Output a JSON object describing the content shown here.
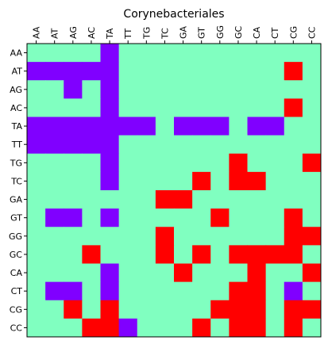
{
  "chart_data": {
    "type": "heatmap",
    "title": "Corynebacteriales",
    "xlabel": "",
    "ylabel": "",
    "x_categories": [
      "AA",
      "AT",
      "AG",
      "AC",
      "TA",
      "TT",
      "TG",
      "TC",
      "GA",
      "GT",
      "GG",
      "GC",
      "CA",
      "CT",
      "CG",
      "CC"
    ],
    "y_categories": [
      "AA",
      "AT",
      "AG",
      "AC",
      "TA",
      "TT",
      "TG",
      "TC",
      "GA",
      "GT",
      "GG",
      "GC",
      "CA",
      "CT",
      "CG",
      "CC"
    ],
    "x_ticks_position": "top",
    "colormap": {
      "0": "#8000ff",
      "1": "#80ffc0",
      "2": "#ff0000"
    },
    "grid": false,
    "legend": "none",
    "values": [
      [
        1,
        1,
        1,
        1,
        0,
        1,
        1,
        1,
        1,
        1,
        1,
        1,
        1,
        1,
        1,
        1
      ],
      [
        0,
        0,
        0,
        0,
        0,
        1,
        1,
        1,
        1,
        1,
        1,
        1,
        1,
        1,
        2,
        1
      ],
      [
        1,
        1,
        0,
        1,
        0,
        1,
        1,
        1,
        1,
        1,
        1,
        1,
        1,
        1,
        1,
        1
      ],
      [
        1,
        1,
        1,
        1,
        0,
        1,
        1,
        1,
        1,
        1,
        1,
        1,
        1,
        1,
        2,
        1
      ],
      [
        0,
        0,
        0,
        0,
        0,
        0,
        0,
        1,
        0,
        0,
        0,
        1,
        0,
        0,
        1,
        1
      ],
      [
        0,
        0,
        0,
        0,
        0,
        1,
        1,
        1,
        1,
        1,
        1,
        1,
        1,
        1,
        1,
        1
      ],
      [
        1,
        1,
        1,
        1,
        0,
        1,
        1,
        1,
        1,
        1,
        1,
        2,
        1,
        1,
        1,
        2
      ],
      [
        1,
        1,
        1,
        1,
        0,
        1,
        1,
        1,
        1,
        2,
        1,
        2,
        2,
        1,
        1,
        1
      ],
      [
        1,
        1,
        1,
        1,
        1,
        1,
        1,
        2,
        2,
        1,
        1,
        1,
        1,
        1,
        1,
        1
      ],
      [
        1,
        0,
        0,
        1,
        0,
        1,
        1,
        1,
        1,
        1,
        2,
        1,
        1,
        1,
        2,
        1
      ],
      [
        1,
        1,
        1,
        1,
        1,
        1,
        1,
        2,
        1,
        1,
        1,
        1,
        1,
        1,
        2,
        2
      ],
      [
        1,
        1,
        1,
        2,
        1,
        1,
        1,
        2,
        1,
        2,
        1,
        2,
        2,
        2,
        2,
        1
      ],
      [
        1,
        1,
        1,
        1,
        0,
        1,
        1,
        1,
        2,
        1,
        1,
        1,
        2,
        1,
        1,
        2
      ],
      [
        1,
        0,
        0,
        1,
        0,
        1,
        1,
        1,
        1,
        1,
        1,
        2,
        2,
        1,
        0,
        1
      ],
      [
        1,
        1,
        2,
        1,
        2,
        1,
        1,
        1,
        1,
        1,
        2,
        2,
        2,
        1,
        2,
        2
      ],
      [
        1,
        1,
        1,
        2,
        2,
        0,
        1,
        1,
        1,
        2,
        1,
        2,
        2,
        1,
        2,
        1
      ]
    ]
  }
}
